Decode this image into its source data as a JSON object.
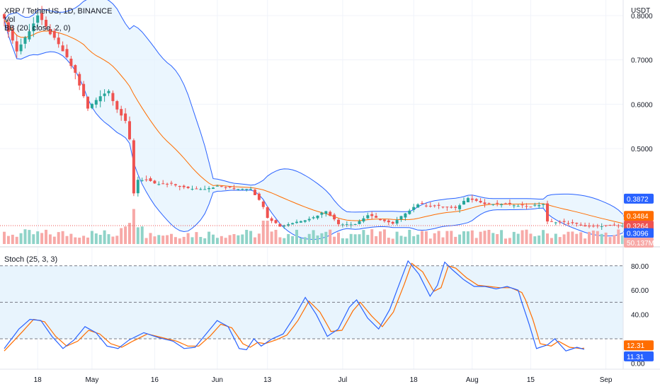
{
  "header": {
    "symbol_line": "XRP / TetherUS, 1D, BINANCE",
    "vol_label": "Vol",
    "bb_label": "BB (20, close, 2, 0)",
    "currency": "USDT",
    "stoch_label": "Stoch (25, 3, 3)"
  },
  "colors": {
    "up": "#26a69a",
    "down": "#ef5350",
    "vol_up": "#8fd3c8",
    "vol_down": "#f7a9a7",
    "bb_band": "#2962ff",
    "bb_basis": "#ff6d00",
    "bb_fill": "#e3f2fd",
    "stoch_k": "#2962ff",
    "stoch_d": "#ff6d00",
    "stoch_fill": "#e8f4fd"
  },
  "chart_data": [
    {
      "type": "candlestick",
      "title": "XRP / TetherUS, 1D, BINANCE",
      "ylabel": "USDT",
      "ylim": [
        0.285,
        0.835
      ],
      "price_ticks": [
        "0.8000",
        "0.7000",
        "0.6000",
        "0.5000"
      ],
      "x_ticks": [
        "18",
        "May",
        "16",
        "Jun",
        "13",
        "Jul",
        "18",
        "Aug",
        "15",
        "Sep"
      ],
      "x_tick_days": [
        8,
        21,
        36,
        51,
        63,
        81,
        98,
        112,
        126,
        144
      ],
      "n_days": 150,
      "anchor_closes": [
        [
          0,
          0.79
        ],
        [
          3,
          0.72
        ],
        [
          5,
          0.75
        ],
        [
          8,
          0.8
        ],
        [
          11,
          0.76
        ],
        [
          14,
          0.72
        ],
        [
          17,
          0.67
        ],
        [
          20,
          0.59
        ],
        [
          23,
          0.62
        ],
        [
          25,
          0.63
        ],
        [
          27,
          0.59
        ],
        [
          29,
          0.56
        ],
        [
          30,
          0.52
        ],
        [
          31,
          0.4
        ],
        [
          32,
          0.43
        ],
        [
          34,
          0.43
        ],
        [
          36,
          0.42
        ],
        [
          40,
          0.42
        ],
        [
          44,
          0.41
        ],
        [
          48,
          0.41
        ],
        [
          51,
          0.415
        ],
        [
          55,
          0.41
        ],
        [
          59,
          0.41
        ],
        [
          62,
          0.37
        ],
        [
          63,
          0.345
        ],
        [
          66,
          0.325
        ],
        [
          70,
          0.335
        ],
        [
          74,
          0.345
        ],
        [
          77,
          0.36
        ],
        [
          80,
          0.33
        ],
        [
          84,
          0.33
        ],
        [
          87,
          0.35
        ],
        [
          90,
          0.34
        ],
        [
          93,
          0.33
        ],
        [
          96,
          0.355
        ],
        [
          99,
          0.375
        ],
        [
          104,
          0.37
        ],
        [
          108,
          0.365
        ],
        [
          111,
          0.39
        ],
        [
          115,
          0.375
        ],
        [
          120,
          0.375
        ],
        [
          126,
          0.37
        ],
        [
          129,
          0.375
        ],
        [
          130,
          0.335
        ],
        [
          133,
          0.335
        ],
        [
          137,
          0.33
        ],
        [
          139,
          0.325
        ],
        [
          141,
          0.325
        ],
        [
          143,
          0.3264
        ]
      ],
      "last_price": "0.3264",
      "bb_upper_last": "0.3872",
      "bb_basis_last": "0.3484",
      "bb_lower_last": "0.3096",
      "volume_last": "50.137M"
    },
    {
      "type": "line",
      "title": "Stoch (25, 3, 3)",
      "ylim": [
        -5,
        95
      ],
      "y_ticks": [
        "80.00",
        "60.00",
        "40.00",
        "0.00"
      ],
      "band_levels": [
        80,
        50,
        20
      ],
      "k_anchors": [
        [
          0,
          12
        ],
        [
          4,
          28
        ],
        [
          7,
          36
        ],
        [
          10,
          35
        ],
        [
          13,
          22
        ],
        [
          16,
          12
        ],
        [
          19,
          19
        ],
        [
          22,
          30
        ],
        [
          25,
          25
        ],
        [
          28,
          14
        ],
        [
          31,
          12
        ],
        [
          34,
          19
        ],
        [
          38,
          25
        ],
        [
          42,
          21
        ],
        [
          46,
          18
        ],
        [
          49,
          12
        ],
        [
          52,
          13
        ],
        [
          55,
          24
        ],
        [
          58,
          35
        ],
        [
          61,
          30
        ],
        [
          64,
          12
        ],
        [
          66,
          11
        ],
        [
          68,
          20
        ],
        [
          70,
          14
        ],
        [
          73,
          20
        ],
        [
          76,
          24
        ],
        [
          79,
          38
        ],
        [
          82,
          54
        ],
        [
          85,
          40
        ],
        [
          88,
          22
        ],
        [
          91,
          28
        ],
        [
          94,
          46
        ],
        [
          96,
          52
        ],
        [
          99,
          37
        ],
        [
          102,
          28
        ],
        [
          105,
          44
        ],
        [
          108,
          68
        ],
        [
          110,
          84
        ],
        [
          113,
          73
        ],
        [
          116,
          55
        ],
        [
          118,
          64
        ],
        [
          120,
          83
        ],
        [
          122,
          77
        ],
        [
          125,
          69
        ],
        [
          128,
          63
        ],
        [
          131,
          63
        ],
        [
          134,
          61
        ],
        [
          137,
          63
        ],
        [
          140,
          60
        ],
        [
          141,
          50
        ],
        [
          143,
          32
        ],
        [
          145,
          12
        ],
        [
          148,
          15
        ],
        [
          150,
          20
        ],
        [
          153,
          10
        ],
        [
          156,
          13
        ],
        [
          158,
          11.31
        ]
      ],
      "d_anchors": [
        [
          0,
          10
        ],
        [
          5,
          26
        ],
        [
          8,
          36
        ],
        [
          11,
          34
        ],
        [
          14,
          22
        ],
        [
          17,
          14
        ],
        [
          20,
          18
        ],
        [
          23,
          27
        ],
        [
          26,
          24
        ],
        [
          29,
          16
        ],
        [
          32,
          13
        ],
        [
          35,
          18
        ],
        [
          39,
          24
        ],
        [
          43,
          21
        ],
        [
          47,
          18
        ],
        [
          50,
          14
        ],
        [
          53,
          14
        ],
        [
          56,
          22
        ],
        [
          59,
          32
        ],
        [
          62,
          29
        ],
        [
          65,
          16
        ],
        [
          67,
          13
        ],
        [
          69,
          17
        ],
        [
          71,
          16
        ],
        [
          74,
          19
        ],
        [
          77,
          23
        ],
        [
          80,
          35
        ],
        [
          83,
          51
        ],
        [
          86,
          42
        ],
        [
          89,
          26
        ],
        [
          92,
          27
        ],
        [
          95,
          43
        ],
        [
          97,
          50
        ],
        [
          100,
          39
        ],
        [
          103,
          30
        ],
        [
          106,
          42
        ],
        [
          109,
          65
        ],
        [
          111,
          82
        ],
        [
          114,
          75
        ],
        [
          117,
          59
        ],
        [
          119,
          62
        ],
        [
          121,
          80
        ],
        [
          123,
          78
        ],
        [
          126,
          70
        ],
        [
          129,
          64
        ],
        [
          132,
          63
        ],
        [
          135,
          62
        ],
        [
          138,
          62
        ],
        [
          141,
          58
        ],
        [
          142,
          52
        ],
        [
          144,
          36
        ],
        [
          146,
          16
        ],
        [
          149,
          14
        ],
        [
          151,
          18
        ],
        [
          154,
          13
        ],
        [
          157,
          12
        ],
        [
          158,
          12.31
        ]
      ],
      "k_last": "11.31",
      "d_last": "12.31"
    }
  ]
}
